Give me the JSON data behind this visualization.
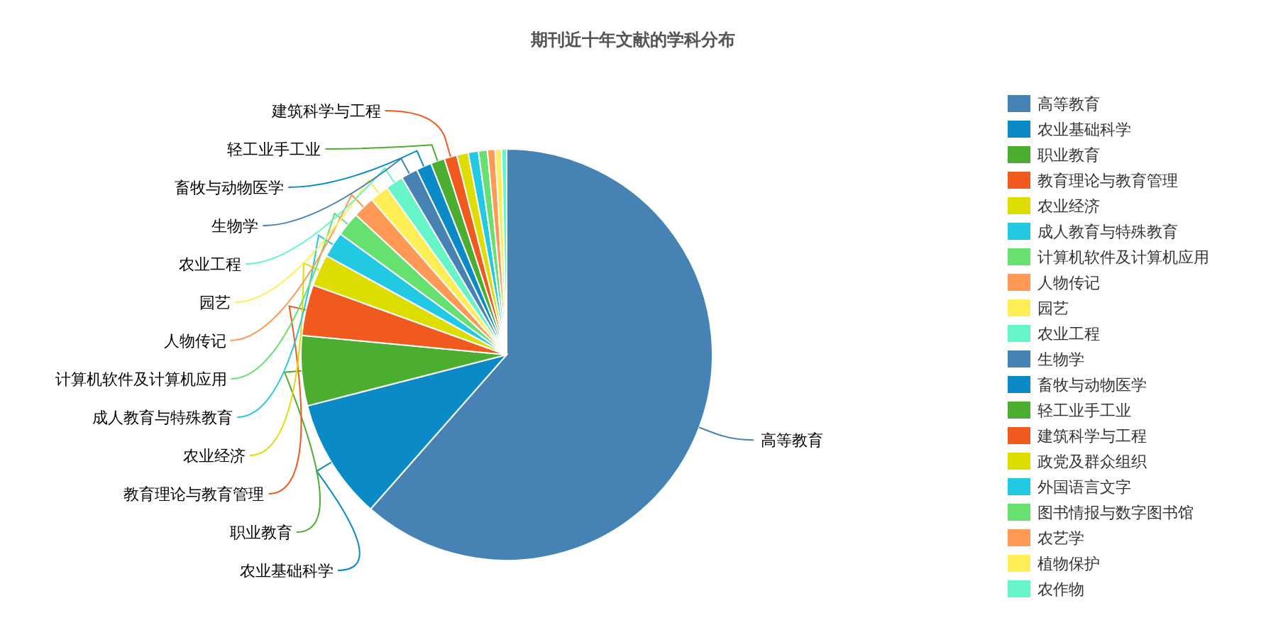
{
  "chart_data": {
    "type": "pie",
    "title": "期刊近十年文献的学科分布",
    "legend": "right",
    "categories": [
      "高等教育",
      "农业基础科学",
      "职业教育",
      "教育理论与教育管理",
      "农业经济",
      "成人教育与特殊教育",
      "计算机软件及计算机应用",
      "人物传记",
      "园艺",
      "农业工程",
      "生物学",
      "畜牧与动物医学",
      "轻工业手工业",
      "建筑科学与工程",
      "政党及群众组织",
      "外国语言文字",
      "图书情报与数字图书馆",
      "农艺学",
      "植物保护",
      "农作物"
    ],
    "values": [
      61.5,
      9.5,
      5.5,
      4,
      2.5,
      2,
      1.9,
      1.7,
      1.5,
      1.4,
      1.3,
      1.2,
      1.1,
      1.0,
      0.9,
      0.8,
      0.7,
      0.6,
      0.5,
      0.4
    ],
    "colors": [
      "#4682b4",
      "#0a8ac6",
      "#4cae30",
      "#f05a1e",
      "#dddd00",
      "#22c9e3",
      "#66e06e",
      "#ff9955",
      "#ffee55",
      "#66f5c8",
      "#4682b4",
      "#0a8ac6",
      "#4cae30",
      "#f05a1e",
      "#dddd00",
      "#22c9e3",
      "#66e06e",
      "#ff9955",
      "#ffee55",
      "#66f5c8"
    ],
    "value_labels": [
      "高等教育",
      "农业基础科学",
      "职业教育",
      "教育理论与教育管理",
      "农业经济",
      "成人教育与特殊教育",
      "计算机软件及计算机应用",
      "人物传记",
      "园艺",
      "农业工程",
      "生物学",
      "畜牧与动物医学",
      "轻工业手工业",
      "建筑科学与工程",
      null,
      null,
      null,
      null,
      null,
      null
    ]
  }
}
